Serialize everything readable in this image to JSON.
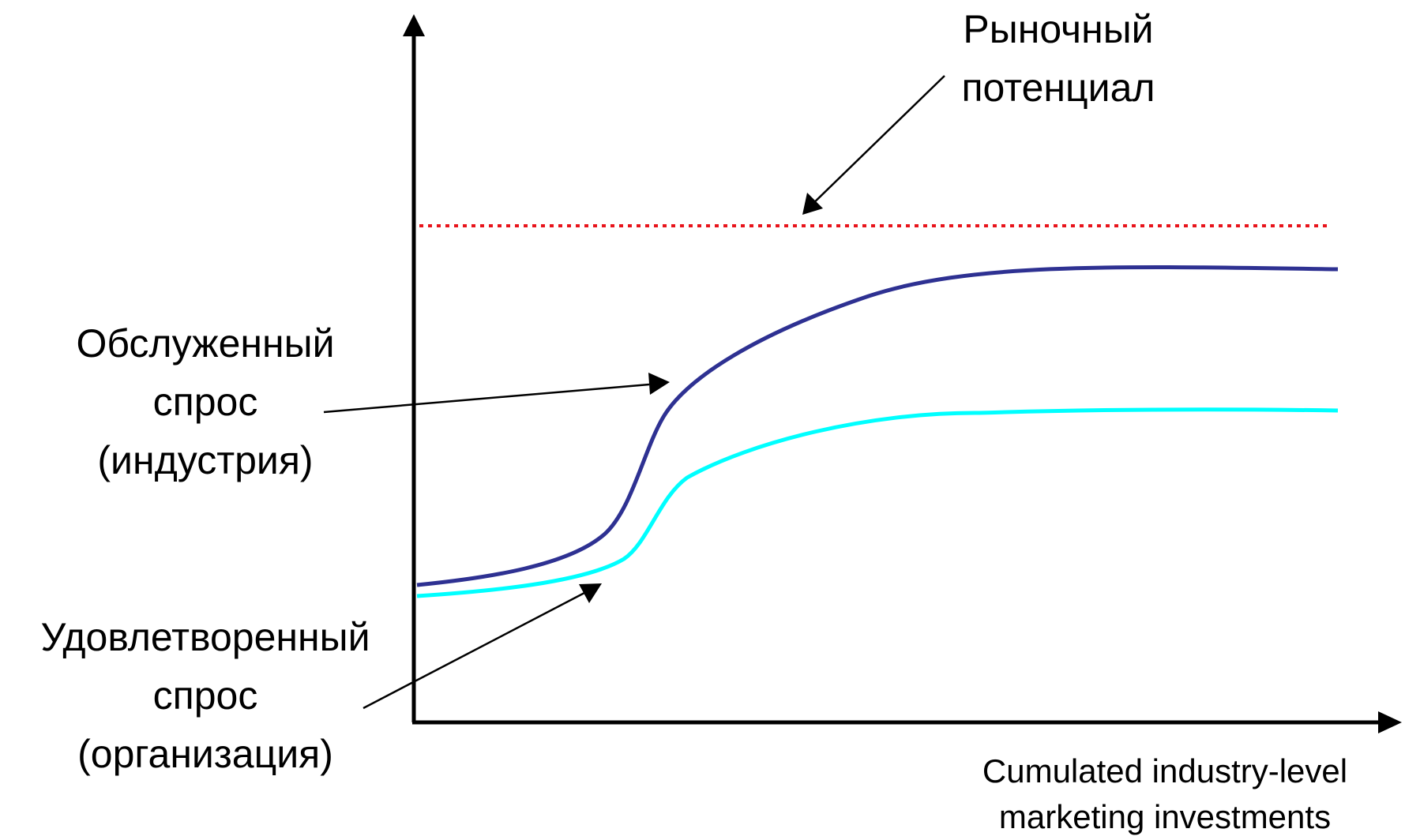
{
  "curves": {
    "market_potential": {
      "lines": [
        "Рыночный",
        "потенциал"
      ],
      "color": "#e8141b",
      "style": "dotted"
    },
    "served_demand": {
      "lines": [
        "Обслуженный",
        "спрос",
        "(индустрия)"
      ],
      "color": "#2e3192"
    },
    "satisfied_demand": {
      "lines": [
        "Удовлетворенный",
        "спрос",
        "(организация)"
      ],
      "color": "#00ffff"
    }
  },
  "x_axis": {
    "lines": [
      "Cumulated industry-level",
      "marketing investments"
    ]
  },
  "axis_color": "#000000"
}
